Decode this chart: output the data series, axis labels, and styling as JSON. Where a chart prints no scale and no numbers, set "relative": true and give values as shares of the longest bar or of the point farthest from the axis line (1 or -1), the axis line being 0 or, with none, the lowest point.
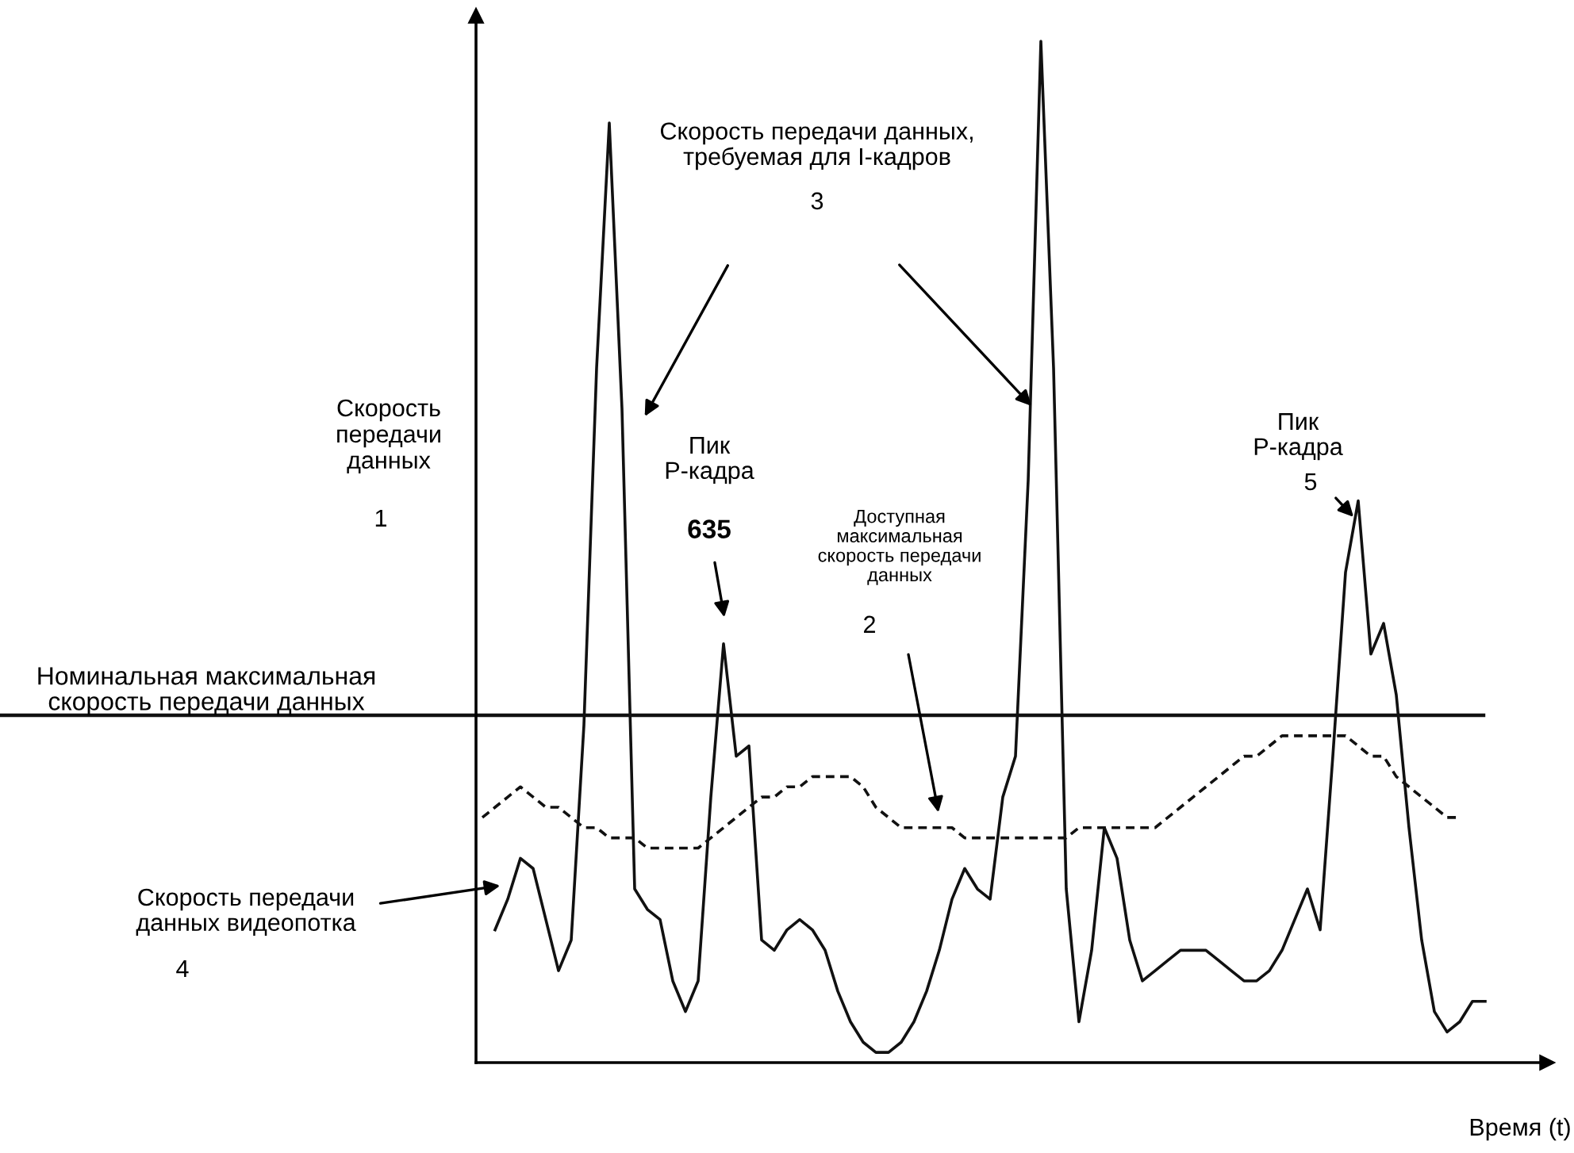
{
  "chart_data": {
    "type": "line",
    "relative": true,
    "xlabel": "Время (t)",
    "ylabel": "Скорость\nпередачи\nданных",
    "categories": [
      null,
      null,
      null,
      null,
      null,
      null,
      null,
      null,
      null,
      null,
      null,
      null,
      null,
      null,
      null,
      null,
      null,
      null,
      null,
      null,
      null,
      null,
      null,
      null,
      null,
      null,
      null,
      null,
      null,
      null,
      null,
      null,
      null,
      null,
      null,
      null,
      null,
      null,
      null,
      null,
      null,
      null,
      null,
      null,
      null,
      null,
      null,
      null,
      null,
      null,
      null,
      null,
      null,
      null,
      null,
      null,
      null,
      null,
      null,
      null,
      null,
      null,
      null,
      null,
      null,
      null,
      null,
      null,
      null,
      null,
      null,
      null,
      null,
      null,
      null,
      null,
      null,
      null,
      null,
      null
    ],
    "series": [
      {
        "color": "#111111",
        "line_style": "solid",
        "values": [
          null,
          0.13,
          0.16,
          0.2,
          0.19,
          0.14,
          0.09,
          0.12,
          0.33,
          0.68,
          0.92,
          0.64,
          0.17,
          0.15,
          0.14,
          0.08,
          0.05,
          0.08,
          0.26,
          0.41,
          0.3,
          0.31,
          0.12,
          0.11,
          0.13,
          0.14,
          0.13,
          0.11,
          0.07,
          0.04,
          0.02,
          0.01,
          0.01,
          0.02,
          0.04,
          0.07,
          0.11,
          0.16,
          0.19,
          0.17,
          0.16,
          0.26,
          0.3,
          0.57,
          1.0,
          0.68,
          0.17,
          0.04,
          0.11,
          0.23,
          0.2,
          0.12,
          0.08,
          0.09,
          0.1,
          0.11,
          0.11,
          0.11,
          0.1,
          0.09,
          0.08,
          0.08,
          0.09,
          0.11,
          0.14,
          0.17,
          0.13,
          0.3,
          0.48,
          0.55,
          0.4,
          0.43,
          0.36,
          0.23,
          0.12,
          0.05,
          0.03,
          0.04,
          0.06,
          0.06
        ]
      },
      {
        "color": "#111111",
        "line_style": "dashed",
        "values": [
          0.24,
          0.25,
          0.26,
          0.27,
          0.26,
          0.25,
          0.25,
          0.24,
          0.23,
          0.23,
          0.22,
          0.22,
          0.22,
          0.21,
          0.21,
          0.21,
          0.21,
          0.21,
          0.22,
          0.23,
          0.24,
          0.25,
          0.26,
          0.26,
          0.27,
          0.27,
          0.28,
          0.28,
          0.28,
          0.28,
          0.27,
          0.25,
          0.24,
          0.23,
          0.23,
          0.23,
          0.23,
          0.23,
          0.22,
          0.22,
          0.22,
          0.22,
          0.22,
          0.22,
          0.22,
          0.22,
          0.22,
          0.23,
          0.23,
          0.23,
          0.23,
          0.23,
          0.23,
          0.23,
          0.24,
          0.25,
          0.26,
          0.27,
          0.28,
          0.29,
          0.3,
          0.3,
          0.31,
          0.32,
          0.32,
          0.32,
          0.32,
          0.32,
          0.32,
          0.31,
          0.3,
          0.3,
          0.28,
          0.27,
          0.26,
          0.25,
          0.24,
          0.24,
          null,
          null
        ]
      }
    ],
    "ref_lines": [
      {
        "axis": "y",
        "value": 0.34,
        "label": "Номинальная максимальная\nскорость передачи данных",
        "color": "#111111",
        "line_style": "solid"
      }
    ],
    "annotations": [
      "Скорость передачи данных,\nтребуемая для I-кадров",
      "3",
      "Пик\nР-кадра",
      "635",
      "Доступная\nмаксимальная\nскорость передачи\nданных",
      "2",
      "Скорость передачи\nданных видеопотка",
      "4",
      "Пик\nР-кадра",
      "5",
      "1"
    ],
    "legend": false,
    "marker": "none"
  }
}
